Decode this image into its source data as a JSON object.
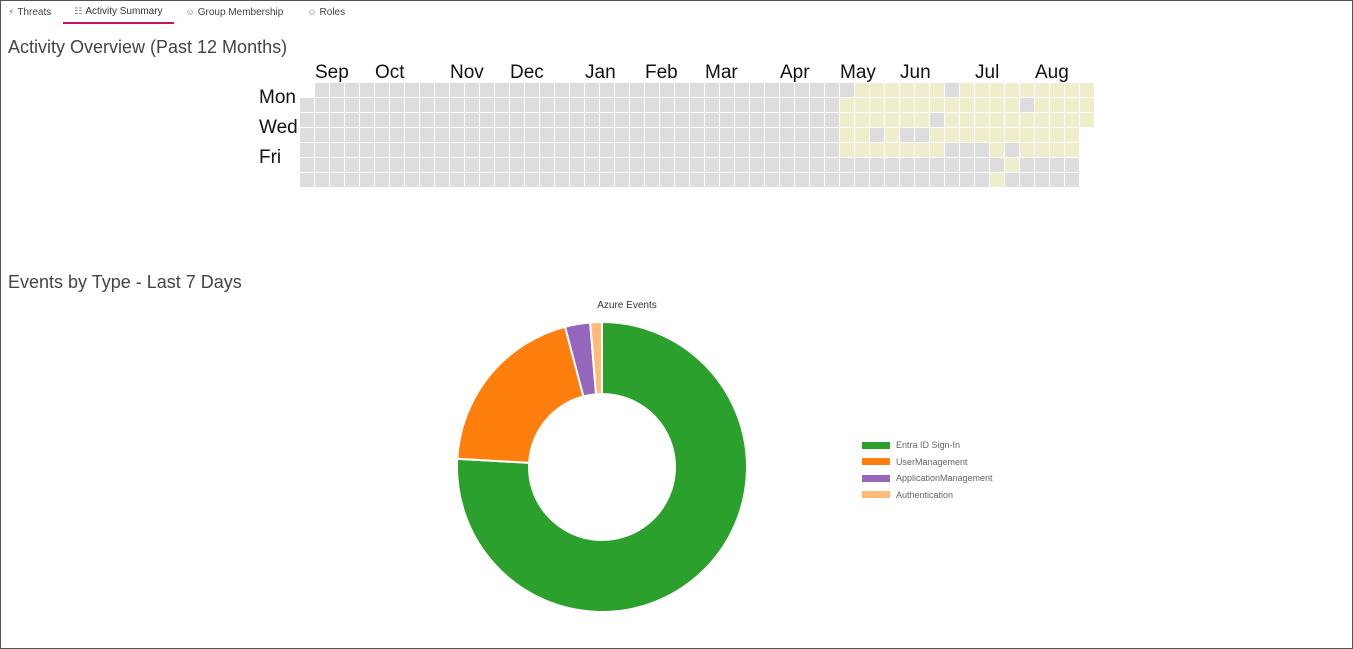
{
  "tabs": [
    {
      "name": "tab-threats",
      "label": "Threats",
      "icon": "bolt-icon",
      "glyph": "⚡",
      "active": false
    },
    {
      "name": "tab-activity-summary",
      "label": "Activity Summary",
      "icon": "chart-icon",
      "glyph": "☷",
      "active": true
    },
    {
      "name": "tab-group-membership",
      "label": "Group Membership",
      "icon": "users-icon",
      "glyph": "☺",
      "active": false
    },
    {
      "name": "tab-roles",
      "label": "Roles",
      "icon": "users-icon",
      "glyph": "☺",
      "active": false
    }
  ],
  "activity": {
    "title": "Activity Overview (Past 12 Months)",
    "months": [
      "Sep",
      "Oct",
      "Nov",
      "Dec",
      "Jan",
      "Feb",
      "Mar",
      "Apr",
      "May",
      "Jun",
      "Jul",
      "Aug"
    ],
    "month_start_weeks": [
      1,
      5,
      10,
      14,
      19,
      23,
      27,
      32,
      36,
      40,
      45,
      49
    ],
    "weekday_labels": [
      "Mon",
      "Wed",
      "Fri"
    ],
    "weekday_label_rows": [
      1,
      3,
      5
    ],
    "weeks": 53,
    "first_day_row": 1,
    "total_days": 366,
    "colors": {
      "empty": "#dddddd",
      "active": "#efedcc"
    },
    "active_days": [
      [
        36,
        1
      ],
      [
        36,
        2
      ],
      [
        36,
        3
      ],
      [
        36,
        4
      ],
      [
        37,
        0
      ],
      [
        37,
        1
      ],
      [
        37,
        2
      ],
      [
        37,
        3
      ],
      [
        37,
        4
      ],
      [
        38,
        0
      ],
      [
        38,
        1
      ],
      [
        38,
        2
      ],
      [
        38,
        4
      ],
      [
        39,
        0
      ],
      [
        39,
        1
      ],
      [
        39,
        2
      ],
      [
        39,
        3
      ],
      [
        39,
        4
      ],
      [
        40,
        0
      ],
      [
        40,
        1
      ],
      [
        40,
        2
      ],
      [
        40,
        4
      ],
      [
        41,
        0
      ],
      [
        41,
        1
      ],
      [
        41,
        2
      ],
      [
        41,
        4
      ],
      [
        42,
        0
      ],
      [
        42,
        1
      ],
      [
        42,
        3
      ],
      [
        42,
        4
      ],
      [
        43,
        1
      ],
      [
        43,
        2
      ],
      [
        43,
        3
      ],
      [
        44,
        0
      ],
      [
        44,
        1
      ],
      [
        44,
        2
      ],
      [
        44,
        3
      ],
      [
        45,
        0
      ],
      [
        45,
        1
      ],
      [
        45,
        2
      ],
      [
        45,
        3
      ],
      [
        46,
        0
      ],
      [
        46,
        1
      ],
      [
        46,
        2
      ],
      [
        46,
        3
      ],
      [
        46,
        4
      ],
      [
        46,
        6
      ],
      [
        47,
        0
      ],
      [
        47,
        1
      ],
      [
        47,
        2
      ],
      [
        47,
        3
      ],
      [
        47,
        5
      ],
      [
        48,
        0
      ],
      [
        48,
        2
      ],
      [
        48,
        3
      ],
      [
        48,
        4
      ],
      [
        49,
        0
      ],
      [
        49,
        1
      ],
      [
        49,
        2
      ],
      [
        49,
        3
      ],
      [
        49,
        4
      ],
      [
        50,
        0
      ],
      [
        50,
        1
      ],
      [
        50,
        2
      ],
      [
        50,
        3
      ],
      [
        50,
        4
      ],
      [
        51,
        0
      ],
      [
        51,
        1
      ],
      [
        51,
        2
      ],
      [
        51,
        3
      ],
      [
        51,
        4
      ],
      [
        52,
        0
      ],
      [
        52,
        1
      ],
      [
        52,
        2
      ],
      [
        52,
        3
      ]
    ]
  },
  "events": {
    "title": "Events by Type - Last 7 Days",
    "chart_data": {
      "type": "pie",
      "title": "Azure Events",
      "categories": [
        "Entra ID Sign-In",
        "UserManagement",
        "ApplicationManagement",
        "Authentication"
      ],
      "values": [
        75.9,
        20.0,
        2.8,
        1.3
      ],
      "colors": [
        "#2ca02c",
        "#ff7f0e",
        "#9467bd",
        "#ffbb78"
      ],
      "legend": "right"
    }
  }
}
